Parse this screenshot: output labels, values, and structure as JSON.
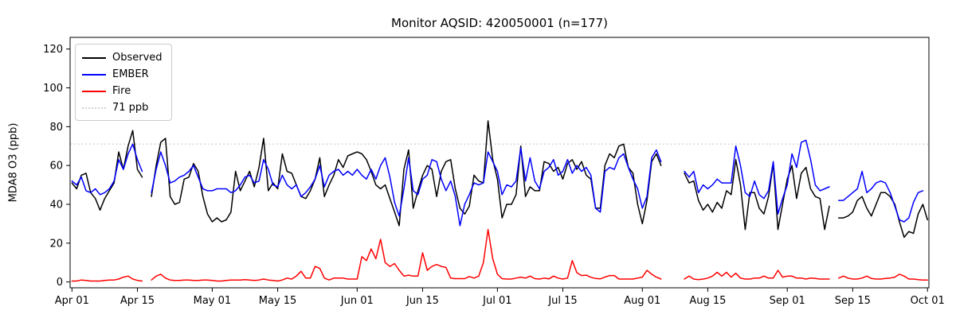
{
  "chart_data": {
    "type": "line",
    "title": "Monitor AQSID: 420050001 (n=177)",
    "ylabel": "MDA8 O3 (ppb)",
    "xlabel": "",
    "ylim": [
      -3,
      126
    ],
    "y_ticks": [
      0,
      20,
      40,
      60,
      80,
      100,
      120
    ],
    "x_tick_labels": [
      "Apr 01",
      "Apr 15",
      "May 01",
      "May 15",
      "Jun 01",
      "Jun 15",
      "Jul 01",
      "Jul 15",
      "Aug 01",
      "Aug 15",
      "Sep 01",
      "Sep 15",
      "Oct 01"
    ],
    "x_tick_days": [
      0,
      14,
      30,
      44,
      61,
      75,
      91,
      105,
      122,
      136,
      153,
      167,
      183
    ],
    "x_range_days": [
      -0.4,
      183.3
    ],
    "start_date": "Apr 01",
    "end_date": "Oct 01",
    "frequency": "daily",
    "grid": false,
    "legend_position": "upper-left",
    "ref_line": {
      "value": 71,
      "label": "71 ppb",
      "color": "#d3d3d3",
      "style": "dotted"
    },
    "series": [
      {
        "name": "Observed",
        "color": "#000000",
        "values": [
          51,
          48,
          55,
          56,
          46,
          43,
          37,
          43,
          47,
          51,
          67,
          58,
          70,
          78,
          58,
          54,
          null,
          44,
          60,
          72,
          74,
          44,
          40,
          41,
          53,
          54,
          61,
          57,
          44,
          35,
          31,
          33,
          31,
          32,
          36,
          57,
          47,
          52,
          57,
          49,
          59,
          74,
          47,
          51,
          48,
          66,
          57,
          56,
          50,
          44,
          43,
          47,
          53,
          64,
          44,
          50,
          55,
          63,
          59,
          65,
          66,
          67,
          66,
          63,
          57,
          50,
          48,
          50,
          43,
          36,
          29,
          58,
          68,
          38,
          47,
          55,
          60,
          58,
          44,
          57,
          62,
          63,
          48,
          38,
          35,
          39,
          55,
          52,
          51,
          83,
          63,
          53,
          33,
          40,
          40,
          45,
          70,
          44,
          49,
          47,
          47,
          62,
          61,
          57,
          59,
          53,
          61,
          63,
          58,
          62,
          55,
          53,
          38,
          38,
          60,
          66,
          64,
          70,
          71,
          59,
          56,
          40,
          30,
          42,
          62,
          66,
          60,
          null,
          null,
          null,
          null,
          56,
          51,
          52,
          42,
          37,
          40,
          36,
          41,
          38,
          47,
          45,
          63,
          50,
          27,
          46,
          46,
          38,
          35,
          44,
          61,
          27,
          40,
          53,
          60,
          43,
          56,
          59,
          48,
          44,
          43,
          27,
          39,
          null,
          33,
          33,
          34,
          36,
          42,
          44,
          38,
          34,
          40,
          46,
          46,
          44,
          40,
          31,
          23,
          26,
          25,
          35,
          40,
          32
        ]
      },
      {
        "name": "EMBER",
        "color": "#0000ff",
        "values": [
          52,
          50,
          54,
          47,
          46,
          48,
          45,
          46,
          48,
          52,
          63,
          58,
          66,
          71,
          63,
          57,
          null,
          46,
          58,
          67,
          60,
          51,
          52,
          54,
          55,
          57,
          60,
          54,
          48,
          47,
          47,
          48,
          48,
          48,
          46,
          47,
          50,
          54,
          55,
          51,
          52,
          63,
          58,
          50,
          49,
          55,
          50,
          48,
          50,
          44,
          46,
          49,
          53,
          60,
          49,
          55,
          57,
          58,
          55,
          57,
          55,
          58,
          55,
          53,
          58,
          53,
          60,
          64,
          54,
          41,
          34,
          48,
          64,
          47,
          45,
          53,
          55,
          63,
          62,
          53,
          47,
          52,
          44,
          29,
          40,
          45,
          51,
          50,
          51,
          67,
          62,
          57,
          45,
          50,
          49,
          52,
          69,
          52,
          64,
          52,
          48,
          57,
          59,
          63,
          55,
          57,
          63,
          56,
          60,
          57,
          59,
          55,
          38,
          36,
          57,
          59,
          58,
          64,
          66,
          59,
          53,
          48,
          38,
          44,
          64,
          68,
          62,
          null,
          null,
          null,
          null,
          57,
          54,
          57,
          46,
          50,
          48,
          50,
          53,
          51,
          51,
          51,
          70,
          60,
          46,
          44,
          52,
          45,
          43,
          47,
          62,
          35,
          43,
          50,
          66,
          59,
          72,
          73,
          63,
          50,
          47,
          48,
          49,
          null,
          42,
          42,
          44,
          46,
          48,
          57,
          46,
          48,
          51,
          52,
          51,
          46,
          39,
          32,
          31,
          33,
          41,
          46,
          47,
          null
        ]
      },
      {
        "name": "Fire",
        "color": "#ff0000",
        "values": [
          0.5,
          0.5,
          1,
          0.8,
          0.5,
          0.5,
          0.5,
          0.8,
          1,
          1,
          1.5,
          2.5,
          3,
          1.5,
          0.8,
          0.5,
          null,
          1,
          3,
          4,
          2,
          1,
          0.8,
          0.8,
          1,
          1,
          0.8,
          0.8,
          1,
          1,
          0.8,
          0.5,
          0.5,
          0.8,
          1,
          1,
          1,
          1.2,
          1,
          0.8,
          1,
          1.5,
          1,
          0.8,
          0.5,
          1,
          2,
          1.5,
          3,
          5.5,
          2,
          2,
          8,
          7,
          2,
          1,
          2,
          2,
          2,
          1.5,
          1.5,
          1.5,
          13,
          11,
          17,
          12,
          22,
          10,
          8,
          9.5,
          6,
          3,
          3.5,
          3,
          3,
          15,
          6,
          8,
          9,
          8,
          7.5,
          2,
          1.7,
          1.7,
          1.7,
          2.8,
          2,
          3,
          10,
          27,
          12,
          4,
          1.7,
          1.5,
          1.5,
          2,
          2.5,
          2,
          3,
          1.7,
          1.5,
          2,
          1.6,
          3,
          2,
          1.5,
          2,
          11,
          4.8,
          3.3,
          3.5,
          2.4,
          1.8,
          1.6,
          2.5,
          3.3,
          3.3,
          1.5,
          1.5,
          1.5,
          1.5,
          2,
          2.5,
          6,
          4,
          2.5,
          1.5,
          null,
          null,
          null,
          null,
          1.5,
          3,
          1.5,
          1.2,
          1.5,
          2,
          3,
          5,
          3,
          5,
          2.5,
          4.5,
          2,
          1.5,
          1.5,
          2,
          2,
          3,
          2,
          2,
          6,
          2.5,
          3,
          3,
          2,
          2,
          1.5,
          2,
          1.8,
          1.5,
          1.5,
          1.5,
          null,
          2,
          3,
          2,
          1.5,
          1.5,
          2,
          3,
          1.8,
          1.5,
          1.5,
          1.8,
          2,
          2.5,
          4,
          3,
          1.5,
          1.5,
          1.2,
          1,
          1
        ]
      }
    ]
  }
}
